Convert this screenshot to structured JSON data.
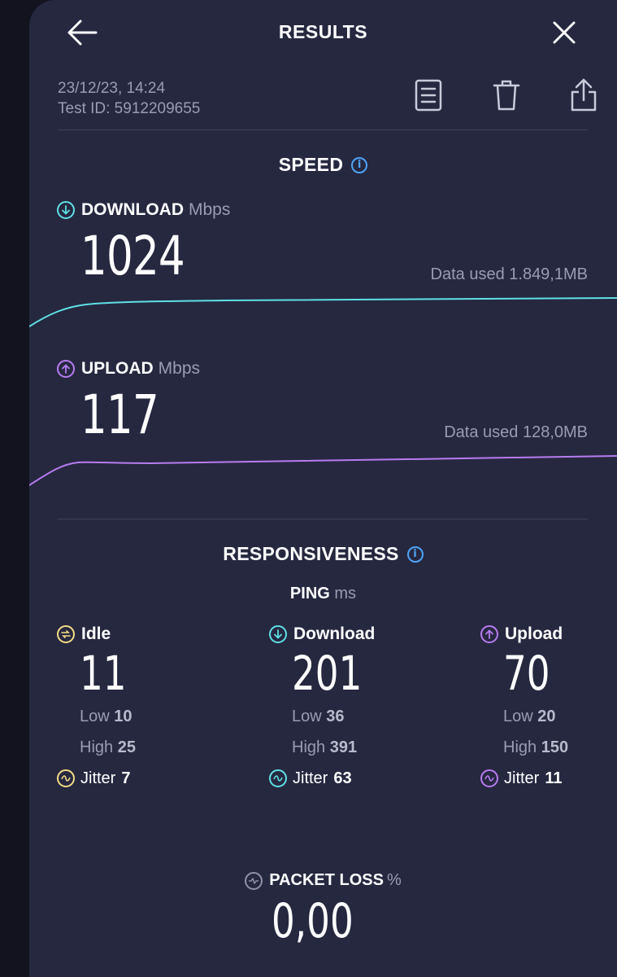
{
  "header": {
    "title": "RESULTS",
    "back_icon": "arrow-left-icon",
    "close_icon": "close-icon"
  },
  "meta": {
    "datetime": "23/12/23, 14:24",
    "test_id": "Test ID: 5912209655"
  },
  "toolbar": {
    "icons": [
      "document-icon",
      "trash-icon",
      "share-icon"
    ]
  },
  "speed": {
    "title": "SPEED",
    "download": {
      "label": "DOWNLOAD",
      "unit": "Mbps",
      "value": "1024",
      "data_used": "Data used 1.849,1MB",
      "color": "#5ee0e6"
    },
    "upload": {
      "label": "UPLOAD",
      "unit": "Mbps",
      "value": "117",
      "data_used": "Data used 128,0MB",
      "color": "#b77cf0"
    }
  },
  "responsiveness": {
    "title": "RESPONSIVENESS",
    "ping_label": "PING",
    "ping_unit": "ms",
    "columns": [
      {
        "label": "Idle",
        "value": "11",
        "low_label": "Low",
        "low": "10",
        "high_label": "High",
        "high": "25",
        "jitter_label": "Jitter",
        "jitter": "7",
        "color": "#f3dc86"
      },
      {
        "label": "Download",
        "value": "201",
        "low_label": "Low",
        "low": "36",
        "high_label": "High",
        "high": "391",
        "jitter_label": "Jitter",
        "jitter": "63",
        "color": "#5ee0e6"
      },
      {
        "label": "Upload",
        "value": "70",
        "low_label": "Low",
        "low": "20",
        "high_label": "High",
        "high": "150",
        "jitter_label": "Jitter",
        "jitter": "11",
        "color": "#b77cf0"
      }
    ]
  },
  "packet_loss": {
    "label": "PACKET LOSS",
    "unit": "%",
    "value": "0,00"
  }
}
